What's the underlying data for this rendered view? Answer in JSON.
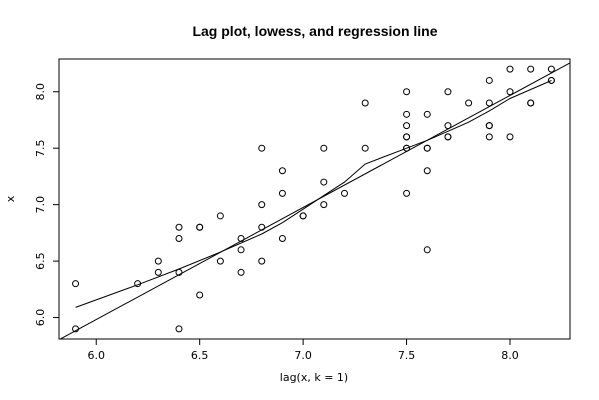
{
  "chart_data": {
    "type": "scatter",
    "title": "Lag plot, lowess, and regression line",
    "xlabel": "lag(x, k = 1)",
    "ylabel": "x",
    "xlim": [
      5.82,
      8.29
    ],
    "ylim": [
      5.81,
      8.29
    ],
    "xticks": [
      6.0,
      6.5,
      7.0,
      7.5,
      8.0
    ],
    "yticks": [
      6.0,
      6.5,
      7.0,
      7.5,
      8.0
    ],
    "xtick_labels": [
      "6.0",
      "6.5",
      "7.0",
      "7.5",
      "8.0"
    ],
    "ytick_labels": [
      "6.0",
      "6.5",
      "7.0",
      "7.5",
      "8.0"
    ],
    "grid": false,
    "points": [
      {
        "x": 5.9,
        "y": 6.3
      },
      {
        "x": 5.9,
        "y": 5.9
      },
      {
        "x": 6.2,
        "y": 6.3
      },
      {
        "x": 6.3,
        "y": 6.5
      },
      {
        "x": 6.3,
        "y": 6.4
      },
      {
        "x": 6.4,
        "y": 6.8
      },
      {
        "x": 6.4,
        "y": 6.7
      },
      {
        "x": 6.4,
        "y": 6.4
      },
      {
        "x": 6.4,
        "y": 5.9
      },
      {
        "x": 6.5,
        "y": 6.8
      },
      {
        "x": 6.5,
        "y": 6.8
      },
      {
        "x": 6.5,
        "y": 6.2
      },
      {
        "x": 6.6,
        "y": 6.9
      },
      {
        "x": 6.6,
        "y": 6.5
      },
      {
        "x": 6.7,
        "y": 6.7
      },
      {
        "x": 6.7,
        "y": 6.6
      },
      {
        "x": 6.7,
        "y": 6.4
      },
      {
        "x": 6.8,
        "y": 7.5
      },
      {
        "x": 6.8,
        "y": 7.0
      },
      {
        "x": 6.8,
        "y": 6.8
      },
      {
        "x": 6.8,
        "y": 6.5
      },
      {
        "x": 6.9,
        "y": 7.3
      },
      {
        "x": 6.9,
        "y": 7.1
      },
      {
        "x": 6.9,
        "y": 6.7
      },
      {
        "x": 7.0,
        "y": 6.9
      },
      {
        "x": 7.0,
        "y": 6.9
      },
      {
        "x": 7.1,
        "y": 7.5
      },
      {
        "x": 7.1,
        "y": 7.2
      },
      {
        "x": 7.1,
        "y": 7.0
      },
      {
        "x": 7.2,
        "y": 7.1
      },
      {
        "x": 7.3,
        "y": 7.9
      },
      {
        "x": 7.3,
        "y": 7.5
      },
      {
        "x": 7.5,
        "y": 8.0
      },
      {
        "x": 7.5,
        "y": 7.8
      },
      {
        "x": 7.5,
        "y": 7.7
      },
      {
        "x": 7.5,
        "y": 7.6
      },
      {
        "x": 7.5,
        "y": 7.6
      },
      {
        "x": 7.5,
        "y": 7.5
      },
      {
        "x": 7.5,
        "y": 7.5
      },
      {
        "x": 7.5,
        "y": 7.1
      },
      {
        "x": 7.6,
        "y": 7.8
      },
      {
        "x": 7.6,
        "y": 7.5
      },
      {
        "x": 7.6,
        "y": 7.5
      },
      {
        "x": 7.6,
        "y": 7.3
      },
      {
        "x": 7.6,
        "y": 6.6
      },
      {
        "x": 7.7,
        "y": 8.0
      },
      {
        "x": 7.7,
        "y": 7.7
      },
      {
        "x": 7.7,
        "y": 7.6
      },
      {
        "x": 7.7,
        "y": 7.6
      },
      {
        "x": 7.8,
        "y": 7.9
      },
      {
        "x": 7.9,
        "y": 8.1
      },
      {
        "x": 7.9,
        "y": 7.9
      },
      {
        "x": 7.9,
        "y": 7.7
      },
      {
        "x": 7.9,
        "y": 7.7
      },
      {
        "x": 7.9,
        "y": 7.6
      },
      {
        "x": 8.0,
        "y": 8.2
      },
      {
        "x": 8.0,
        "y": 8.0
      },
      {
        "x": 8.0,
        "y": 7.6
      },
      {
        "x": 8.1,
        "y": 8.2
      },
      {
        "x": 8.1,
        "y": 7.9
      },
      {
        "x": 8.1,
        "y": 7.9
      },
      {
        "x": 8.2,
        "y": 8.2
      },
      {
        "x": 8.2,
        "y": 8.1
      },
      {
        "x": 8.2,
        "y": 8.1
      }
    ],
    "lowess": [
      [
        5.9,
        6.09
      ],
      [
        6.2,
        6.29
      ],
      [
        6.4,
        6.43
      ],
      [
        6.6,
        6.58
      ],
      [
        6.8,
        6.74
      ],
      [
        6.9,
        6.84
      ],
      [
        7.0,
        6.96
      ],
      [
        7.1,
        7.08
      ],
      [
        7.2,
        7.2
      ],
      [
        7.3,
        7.36
      ],
      [
        7.5,
        7.5
      ],
      [
        7.6,
        7.57
      ],
      [
        7.7,
        7.65
      ],
      [
        7.8,
        7.73
      ],
      [
        7.9,
        7.83
      ],
      [
        8.0,
        7.94
      ],
      [
        8.1,
        8.02
      ],
      [
        8.2,
        8.1
      ]
    ],
    "regression": {
      "intercept": 0.0267,
      "slope": 0.9926
    }
  }
}
